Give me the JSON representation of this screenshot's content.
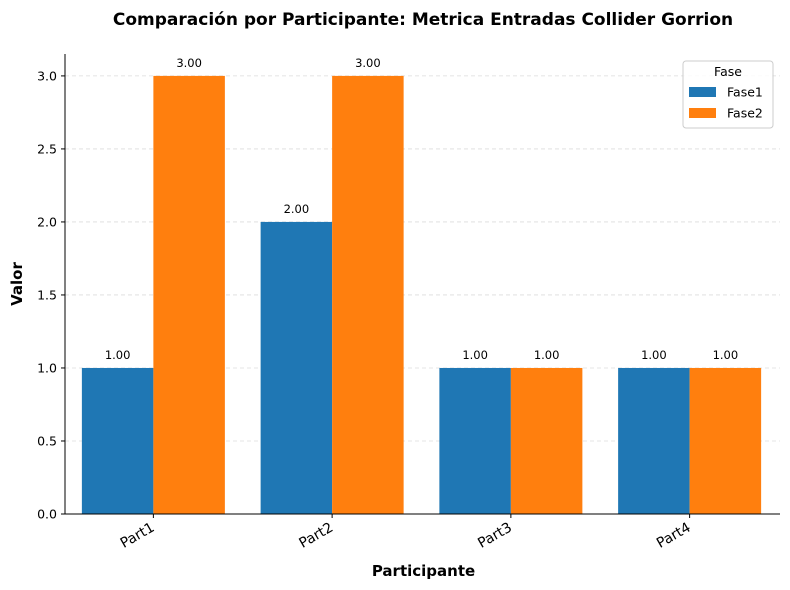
{
  "chart_data": {
    "type": "bar",
    "title": "Comparación por Participante: Metrica Entradas Collider Gorrion",
    "xlabel": "Participante",
    "ylabel": "Valor",
    "categories": [
      "Part1",
      "Part2",
      "Part3",
      "Part4"
    ],
    "series": [
      {
        "name": "Fase1",
        "values": [
          1.0,
          2.0,
          1.0,
          1.0
        ],
        "labels": [
          "1.00",
          "2.00",
          "1.00",
          "1.00"
        ],
        "color": "#1f77b4"
      },
      {
        "name": "Fase2",
        "values": [
          3.0,
          3.0,
          1.0,
          1.0
        ],
        "labels": [
          "3.00",
          "3.00",
          "1.00",
          "1.00"
        ],
        "color": "#ff7f0e"
      }
    ],
    "ylim": [
      0,
      3.15
    ],
    "yticks": [
      "0.0",
      "0.5",
      "1.0",
      "1.5",
      "2.0",
      "2.5",
      "3.0"
    ],
    "ytick_values": [
      0,
      0.5,
      1.0,
      1.5,
      2.0,
      2.5,
      3.0
    ],
    "grid": "horizontal dashed",
    "legend": {
      "title": "Fase",
      "placement": "top-right"
    }
  }
}
